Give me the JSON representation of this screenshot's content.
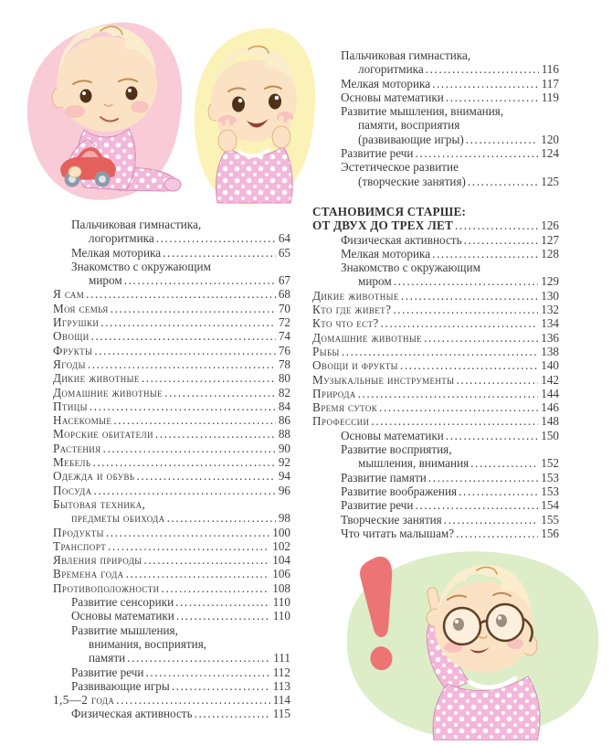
{
  "page": {
    "background": "#ffffff",
    "text_color": "#3d3d3d"
  },
  "illustrations": {
    "top_left": {
      "icon": "baby-with-toy-car-illustration",
      "blob_color": "#f8cbd6",
      "pajama_color": "#f3b7da",
      "car_color": "#e4605c",
      "skin_color": "#fce2c4",
      "hair_color": "#f9edcd"
    },
    "top_right": {
      "icon": "baby-waving-hands-illustration",
      "blob_color": "#fbf2b8"
    },
    "bottom_right": {
      "icon": "baby-with-glasses-pointing-illustration",
      "blob_color": "#dcedc8",
      "exclamation_color": "#ed7475"
    }
  },
  "toc_right_top": {
    "lines": [
      {
        "t": "Пальчиковая гимнастика,",
        "in": 1
      },
      {
        "t": "логоритмика",
        "in": 2,
        "p": "116"
      },
      {
        "t": "Мелкая моторика",
        "in": 1,
        "p": "117"
      },
      {
        "t": "Основы математики",
        "in": 1,
        "p": "119"
      },
      {
        "t": "Развитие мышления, внимания,",
        "in": 1
      },
      {
        "t": "памяти, восприятия",
        "in": 2
      },
      {
        "t": "(развивающие игры)",
        "in": 2,
        "p": "120"
      },
      {
        "t": "Развитие речи",
        "in": 1,
        "p": "124"
      },
      {
        "t": "Эстетическое развитие",
        "in": 1
      },
      {
        "t": "(творческие занятия)",
        "in": 2,
        "p": "125"
      }
    ]
  },
  "toc_right_main": {
    "lines": [
      {
        "t": "СТАНОВИМСЯ СТАРШЕ:",
        "b": true
      },
      {
        "t": "ОТ ДВУХ ДО ТРЕХ ЛЕТ",
        "b": true,
        "p": "126"
      },
      {
        "t": "Физическая активность",
        "in": 1,
        "p": "127"
      },
      {
        "t": "Мелкая моторика",
        "in": 1,
        "p": "128"
      },
      {
        "t": "Знакомство с окружающим",
        "in": 1
      },
      {
        "t": "миром",
        "in": 2,
        "p": "129"
      },
      {
        "t": "Дикие животные",
        "sc": true,
        "p": "130"
      },
      {
        "t": "Кто где живет?",
        "sc": true,
        "p": "132"
      },
      {
        "t": "Кто что ест?",
        "sc": true,
        "p": "134"
      },
      {
        "t": "Домашние животные",
        "sc": true,
        "p": "136"
      },
      {
        "t": "Рыбы",
        "sc": true,
        "p": "138"
      },
      {
        "t": "Овощи и фрукты",
        "sc": true,
        "p": "140"
      },
      {
        "t": "Музыкальные инструменты",
        "sc": true,
        "p": "142"
      },
      {
        "t": "Природа",
        "sc": true,
        "p": "144"
      },
      {
        "t": "Время суток",
        "sc": true,
        "p": "146"
      },
      {
        "t": "Профессии",
        "sc": true,
        "p": "148"
      },
      {
        "t": "Основы математики",
        "in": 1,
        "p": "150"
      },
      {
        "t": "Развитие восприятия,",
        "in": 1
      },
      {
        "t": "мышления, внимания",
        "in": 2,
        "p": "152"
      },
      {
        "t": "Развитие памяти",
        "in": 1,
        "p": "153"
      },
      {
        "t": "Развитие воображения",
        "in": 1,
        "p": "153"
      },
      {
        "t": "Развитие речи",
        "in": 1,
        "p": "154"
      },
      {
        "t": "Творческие занятия",
        "in": 1,
        "p": "155"
      },
      {
        "t": "Что читать малышам?",
        "in": 1,
        "p": "156"
      }
    ]
  },
  "toc_left": {
    "lines": [
      {
        "t": "Пальчиковая гимнастика,",
        "in": 1
      },
      {
        "t": "логоритмика",
        "in": 2,
        "p": "64"
      },
      {
        "t": "Мелкая моторика",
        "in": 1,
        "p": "65"
      },
      {
        "t": "Знакомство с окружающим",
        "in": 1
      },
      {
        "t": "миром",
        "in": 2,
        "p": "67"
      },
      {
        "t": "Я сам",
        "sc": true,
        "p": "68"
      },
      {
        "t": "Моя семья",
        "sc": true,
        "p": "70"
      },
      {
        "t": "Игрушки",
        "sc": true,
        "p": "72"
      },
      {
        "t": "Овощи",
        "sc": true,
        "p": "74"
      },
      {
        "t": "Фрукты",
        "sc": true,
        "p": "76"
      },
      {
        "t": "Ягоды",
        "sc": true,
        "p": "78"
      },
      {
        "t": "Дикие животные",
        "sc": true,
        "p": "80"
      },
      {
        "t": "Домашние животные",
        "sc": true,
        "p": "82"
      },
      {
        "t": "Птицы",
        "sc": true,
        "p": "84"
      },
      {
        "t": "Насекомые",
        "sc": true,
        "p": "86"
      },
      {
        "t": "Морские обитатели",
        "sc": true,
        "p": "88"
      },
      {
        "t": "Растения",
        "sc": true,
        "p": "90"
      },
      {
        "t": "Мебель",
        "sc": true,
        "p": "92"
      },
      {
        "t": "Одежда и обувь",
        "sc": true,
        "p": "94"
      },
      {
        "t": "Посуда",
        "sc": true,
        "p": "96"
      },
      {
        "t": "Бытовая техника,",
        "sc": true
      },
      {
        "t": "предметы обихода",
        "sc": true,
        "in": 1,
        "p": "98"
      },
      {
        "t": "Продукты",
        "sc": true,
        "p": "100"
      },
      {
        "t": "Транспорт",
        "sc": true,
        "p": "102"
      },
      {
        "t": "Явления природы",
        "sc": true,
        "p": "104"
      },
      {
        "t": "Времена года",
        "sc": true,
        "p": "106"
      },
      {
        "t": "Противоположности",
        "sc": true,
        "p": "108"
      },
      {
        "t": "Развитие сенсорики",
        "in": 1,
        "p": "110"
      },
      {
        "t": "Основы математики",
        "in": 1,
        "p": "110"
      },
      {
        "t": "Развитие мышления,",
        "in": 1
      },
      {
        "t": "внимания, восприятия,",
        "in": 2
      },
      {
        "t": "памяти",
        "in": 2,
        "p": "111"
      },
      {
        "t": "Развитие речи",
        "in": 1,
        "p": "112"
      },
      {
        "t": "Развивающие игры",
        "in": 1,
        "p": "113"
      },
      {
        "t": "1,5—2 года",
        "sc": true,
        "p": "114"
      },
      {
        "t": "Физическая активность",
        "in": 1,
        "p": "115"
      }
    ]
  }
}
